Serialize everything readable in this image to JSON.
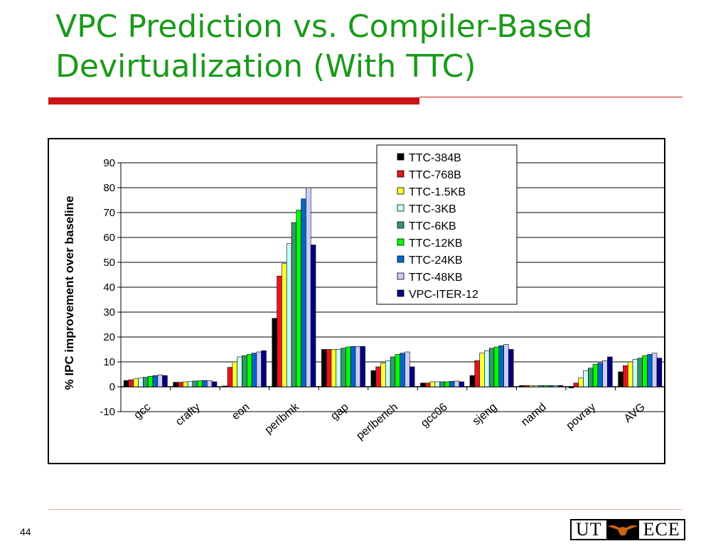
{
  "slide": {
    "title_line1": "VPC Prediction vs. Compiler-Based",
    "title_line2": "Devirtualization (With TTC)",
    "page_number": "44",
    "logo_left": "UT",
    "logo_right": "ECE",
    "title_color": "#1a9a1a",
    "rule_color": "#cc1414"
  },
  "chart_data": {
    "type": "bar",
    "ylabel": "% IPC improvement over baseline",
    "xlabel": "",
    "ylim": [
      -10,
      90
    ],
    "yticks": [
      -10,
      0,
      10,
      20,
      30,
      40,
      50,
      60,
      70,
      80,
      90
    ],
    "grid": true,
    "legend_position": "top-right",
    "categories": [
      "gcc",
      "crafty",
      "eon",
      "perlbmk",
      "gap",
      "perlbench",
      "gcc06",
      "sjeng",
      "namd",
      "povray",
      "AVG"
    ],
    "series": [
      {
        "name": "TTC-384B",
        "color": "#000000",
        "values": [
          2.5,
          1.8,
          0.3,
          27.5,
          15.0,
          6.5,
          1.5,
          4.5,
          0.5,
          -0.5,
          6.0
        ]
      },
      {
        "name": "TTC-768B",
        "color": "#e8141c",
        "values": [
          2.8,
          1.8,
          7.8,
          44.5,
          15.0,
          8.0,
          1.5,
          10.5,
          0.5,
          1.5,
          8.5
        ]
      },
      {
        "name": "TTC-1.5KB",
        "color": "#ffff33",
        "values": [
          3.2,
          2.0,
          10.0,
          49.5,
          15.0,
          9.5,
          2.0,
          13.5,
          0.5,
          3.5,
          10.0
        ]
      },
      {
        "name": "TTC-3KB",
        "color": "#ccffff",
        "values": [
          3.5,
          2.1,
          12.0,
          57.5,
          15.0,
          10.5,
          2.0,
          14.5,
          0.5,
          6.5,
          11.0
        ]
      },
      {
        "name": "TTC-6KB",
        "color": "#339966",
        "values": [
          3.8,
          2.3,
          12.5,
          66.0,
          15.5,
          12.0,
          2.0,
          15.5,
          0.5,
          7.5,
          11.5
        ]
      },
      {
        "name": "TTC-12KB",
        "color": "#00ff00",
        "values": [
          4.2,
          2.4,
          13.0,
          71.0,
          16.0,
          13.0,
          2.0,
          16.0,
          0.5,
          9.0,
          12.5
        ]
      },
      {
        "name": "TTC-24KB",
        "color": "#0066cc",
        "values": [
          4.5,
          2.5,
          13.5,
          75.5,
          16.2,
          13.5,
          2.2,
          16.5,
          0.5,
          9.5,
          13.0
        ]
      },
      {
        "name": "TTC-48KB",
        "color": "#ccccff",
        "values": [
          4.8,
          2.5,
          14.0,
          80.0,
          16.2,
          14.0,
          2.3,
          17.0,
          0.5,
          10.5,
          13.5
        ]
      },
      {
        "name": "VPC-ITER-12",
        "color": "#000080",
        "values": [
          4.5,
          2.0,
          14.5,
          57.0,
          16.2,
          8.0,
          2.0,
          15.0,
          0.5,
          12.0,
          11.5
        ]
      }
    ]
  }
}
